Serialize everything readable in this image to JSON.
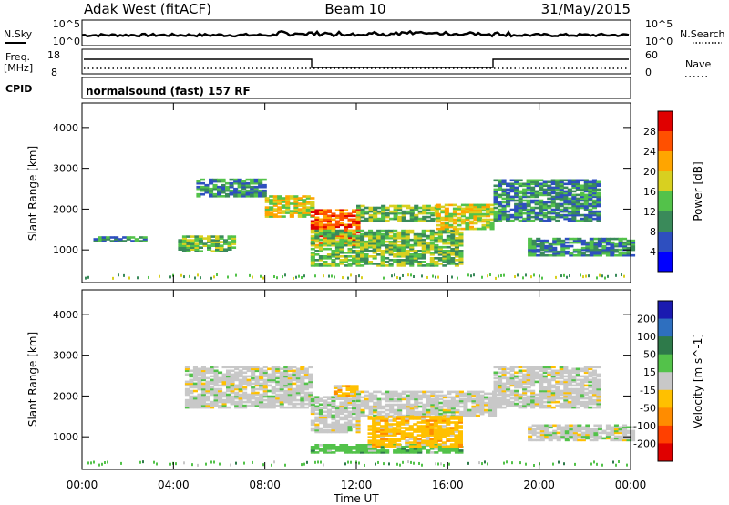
{
  "header": {
    "station": "Adak West (fitACF)",
    "beam": "Beam 10",
    "date": "31/May/2015"
  },
  "noise_panel": {
    "left_label": "N.Sky",
    "right_label": "N.Search",
    "left_ticks": [
      "10^5",
      "10^0"
    ],
    "right_ticks": [
      "10^5",
      "10^0"
    ]
  },
  "freq_panel": {
    "left_label_1": "Freq.",
    "left_label_2": "[MHz]",
    "right_label": "Nave",
    "left_ticks": [
      "18",
      "8"
    ],
    "right_ticks": [
      "60",
      "0"
    ]
  },
  "cpid": {
    "label": "CPID",
    "text": "normalsound (fast) 157 RF"
  },
  "colors": {
    "power_scale": [
      "#0000ff",
      "#2e4fbf",
      "#3a8a5a",
      "#53c24a",
      "#d8d020",
      "#ffa500",
      "#ff5000",
      "#e00000"
    ],
    "velocity_scale": [
      "#1a1ab0",
      "#2e6fbf",
      "#2e7a4a",
      "#53c24a",
      "#c8c8c8",
      "#ffc000",
      "#ff8c00",
      "#ff4000",
      "#e00000"
    ]
  },
  "chart_data": [
    {
      "type": "heatmap",
      "title": "Power",
      "ylabel": "Slant Range [km]",
      "xlabel": "Time UT",
      "x_ticks": [
        "00:00",
        "04:00",
        "08:00",
        "12:00",
        "16:00",
        "20:00",
        "00:00"
      ],
      "y_ticks": [
        1000,
        2000,
        3000,
        4000
      ],
      "ylim": [
        200,
        4600
      ],
      "xlim_hours": [
        0,
        24
      ],
      "colorbar_label": "Power [dB]",
      "colorbar_ticks": [
        "4",
        "8",
        "12",
        "16",
        "20",
        "24",
        "28"
      ],
      "echo_regions": [
        {
          "t0": 0.5,
          "t1": 2.8,
          "r0": 1200,
          "r1": 1320,
          "level": 2
        },
        {
          "t0": 4.2,
          "t1": 6.6,
          "r0": 950,
          "r1": 1320,
          "level": 3
        },
        {
          "t0": 5.0,
          "t1": 8.0,
          "r0": 2300,
          "r1": 2750,
          "level": 2
        },
        {
          "t0": 8.0,
          "t1": 10.0,
          "r0": 1800,
          "r1": 2300,
          "level": 4
        },
        {
          "t0": 10.0,
          "t1": 12.0,
          "r0": 1100,
          "r1": 2000,
          "level": 6
        },
        {
          "t0": 12.0,
          "t1": 15.5,
          "r0": 1700,
          "r1": 2100,
          "level": 3
        },
        {
          "t0": 10.0,
          "t1": 16.5,
          "r0": 600,
          "r1": 1500,
          "level": 3
        },
        {
          "t0": 15.5,
          "t1": 18.0,
          "r0": 1500,
          "r1": 2100,
          "level": 4
        },
        {
          "t0": 18.0,
          "t1": 22.5,
          "r0": 1700,
          "r1": 2700,
          "level": 2
        },
        {
          "t0": 19.5,
          "t1": 24.0,
          "r0": 850,
          "r1": 1300,
          "level": 2
        }
      ]
    },
    {
      "type": "heatmap",
      "title": "Velocity",
      "ylabel": "Slant Range [km]",
      "xlabel": "Time UT",
      "x_ticks": [
        "00:00",
        "04:00",
        "08:00",
        "12:00",
        "16:00",
        "20:00",
        "00:00"
      ],
      "y_ticks": [
        1000,
        2000,
        3000,
        4000
      ],
      "ylim": [
        200,
        4600
      ],
      "xlim_hours": [
        0,
        24
      ],
      "colorbar_label": "Velocity [m s^-1]",
      "colorbar_ticks": [
        "200",
        "100",
        "50",
        "15",
        "-15",
        "-50",
        "-100",
        "-200"
      ],
      "echo_regions": [
        {
          "t0": 4.5,
          "t1": 10.0,
          "r0": 1700,
          "r1": 2700,
          "class": "-15"
        },
        {
          "t0": 10.0,
          "t1": 12.0,
          "r0": 1100,
          "r1": 2000,
          "class": "-15"
        },
        {
          "t0": 11.0,
          "t1": 12.0,
          "r0": 2000,
          "r1": 2250,
          "class": "-50"
        },
        {
          "t0": 12.0,
          "t1": 18.0,
          "r0": 1500,
          "r1": 2100,
          "class": "-15"
        },
        {
          "t0": 10.0,
          "t1": 16.5,
          "r0": 600,
          "r1": 800,
          "class": "15"
        },
        {
          "t0": 12.5,
          "t1": 16.5,
          "r0": 750,
          "r1": 1500,
          "class": "-50"
        },
        {
          "t0": 18.0,
          "t1": 22.5,
          "r0": 1700,
          "r1": 2700,
          "class": "-15"
        },
        {
          "t0": 19.5,
          "t1": 24.0,
          "r0": 900,
          "r1": 1300,
          "class": "-15"
        }
      ]
    }
  ]
}
